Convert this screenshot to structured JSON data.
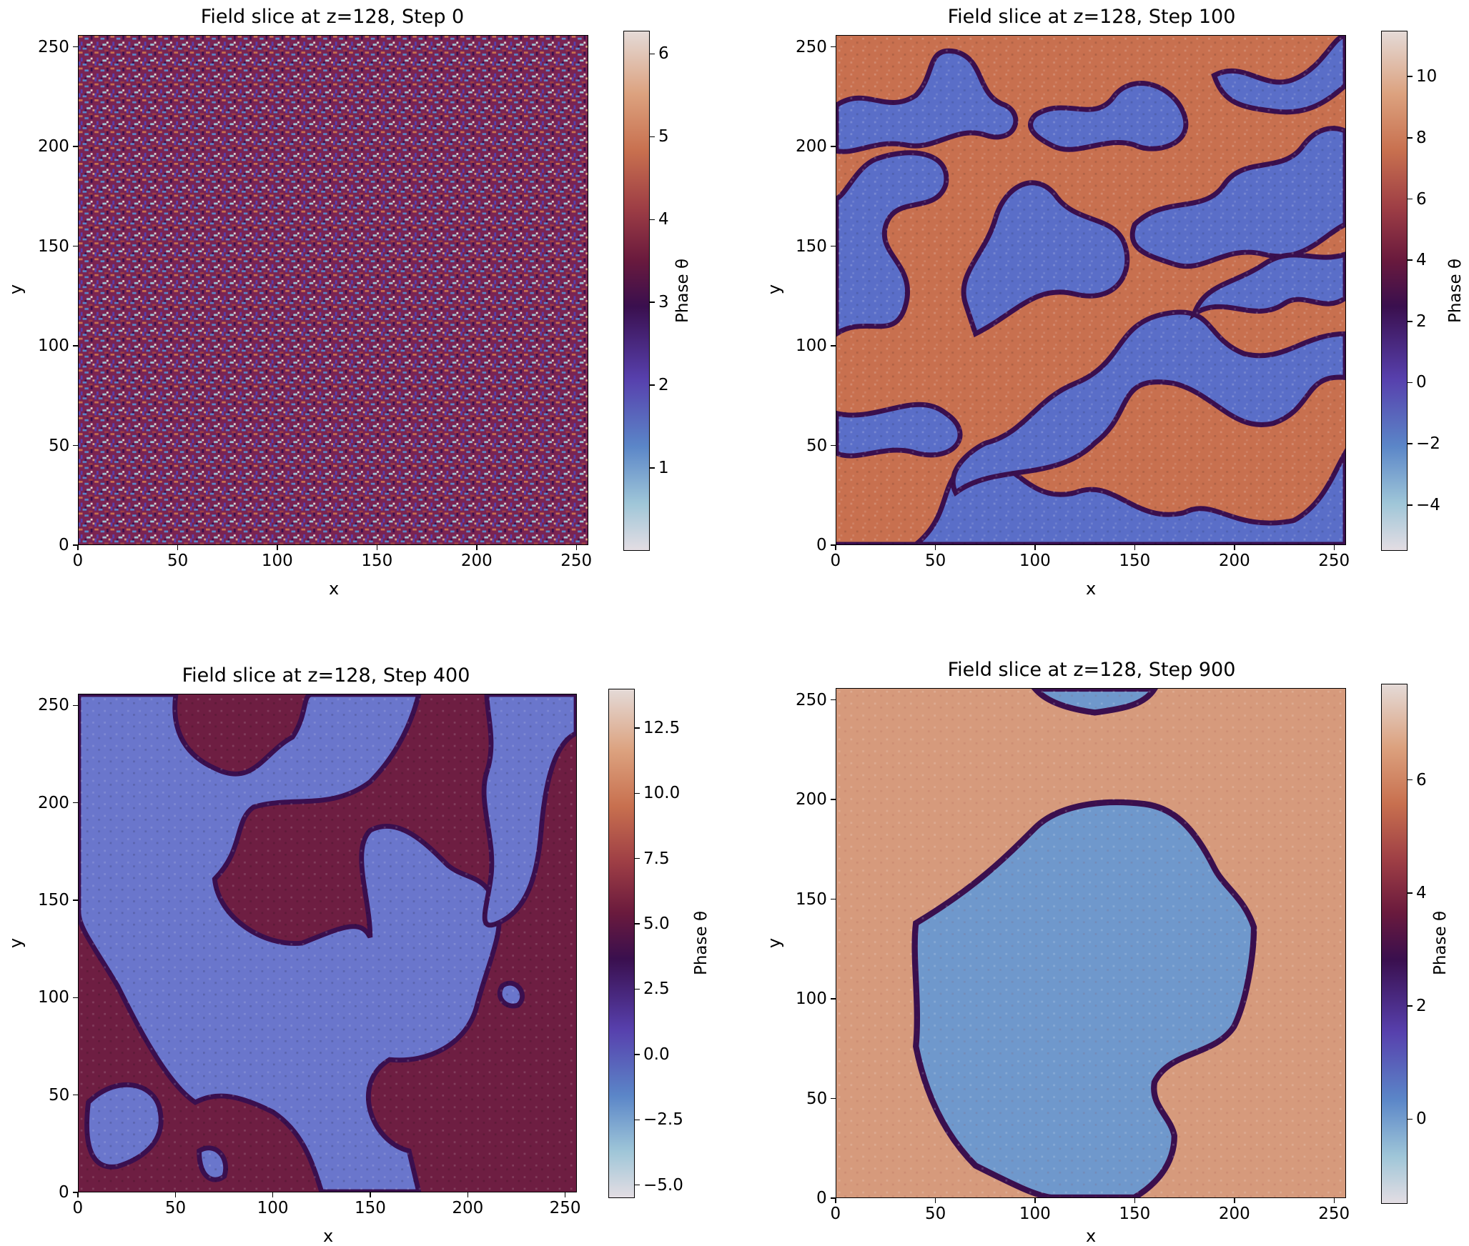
{
  "colors": {
    "twilight_shifted": [
      "#e3dde3",
      "#9fc6d8",
      "#5b86c8",
      "#5740ad",
      "#3a0f4e",
      "#6a1a3d",
      "#9e3e45",
      "#c8704f",
      "#dca27f",
      "#e4dad7"
    ]
  },
  "chart_data": [
    {
      "type": "heatmap",
      "title": "Field slice at z=128, Step 0",
      "xlabel": "x",
      "ylabel": "y",
      "xlim": [
        0,
        256
      ],
      "ylim": [
        0,
        256
      ],
      "xticks": [
        "0",
        "50",
        "100",
        "150",
        "200",
        "250"
      ],
      "yticks": [
        "0",
        "50",
        "100",
        "150",
        "200",
        "250"
      ],
      "colorbar": {
        "label": "Phase θ",
        "range": [
          0,
          6.28
        ],
        "ticks": [
          "1",
          "2",
          "3",
          "4",
          "5",
          "6"
        ]
      },
      "colormap": "twilight_shifted",
      "pattern": "uniform random noise"
    },
    {
      "type": "heatmap",
      "title": "Field slice at z=128, Step 100",
      "xlabel": "x",
      "ylabel": "y",
      "xlim": [
        0,
        256
      ],
      "ylim": [
        0,
        256
      ],
      "xticks": [
        "0",
        "50",
        "100",
        "150",
        "200",
        "250"
      ],
      "yticks": [
        "0",
        "50",
        "100",
        "150",
        "200",
        "250"
      ],
      "colorbar": {
        "label": "Phase θ",
        "range": [
          -5.5,
          11.5
        ],
        "ticks": [
          "−4",
          "−2",
          "0",
          "2",
          "4",
          "6",
          "8",
          "10"
        ]
      },
      "colormap": "twilight_shifted",
      "pattern": "fine intertwined domains (blue ≈ 0, orange ≈ 8)"
    },
    {
      "type": "heatmap",
      "title": "Field slice at z=128, Step 400",
      "xlabel": "x",
      "ylabel": "y",
      "xlim": [
        0,
        256
      ],
      "ylim": [
        0,
        256
      ],
      "xticks": [
        "0",
        "50",
        "100",
        "150",
        "200",
        "250"
      ],
      "yticks": [
        "0",
        "50",
        "100",
        "150",
        "200",
        "250"
      ],
      "colorbar": {
        "label": "Phase θ",
        "range": [
          -5.5,
          14.0
        ],
        "ticks": [
          "−5.0",
          "−2.5",
          "0.0",
          "2.5",
          "5.0",
          "7.5",
          "10.0",
          "12.5"
        ]
      },
      "colormap": "twilight_shifted",
      "pattern": "coarsened domains (blue ≈ 0, dark red ≈ 6)"
    },
    {
      "type": "heatmap",
      "title": "Field slice at z=128, Step 900",
      "xlabel": "x",
      "ylabel": "y",
      "xlim": [
        0,
        256
      ],
      "ylim": [
        0,
        256
      ],
      "xticks": [
        "0",
        "50",
        "100",
        "150",
        "200",
        "250"
      ],
      "yticks": [
        "0",
        "50",
        "100",
        "150",
        "200",
        "250"
      ],
      "colorbar": {
        "label": "Phase θ",
        "range": [
          -1.5,
          7.7
        ],
        "ticks": [
          "0",
          "2",
          "4",
          "6"
        ]
      },
      "colormap": "twilight_shifted",
      "pattern": "single large blue domain in orange background"
    }
  ]
}
